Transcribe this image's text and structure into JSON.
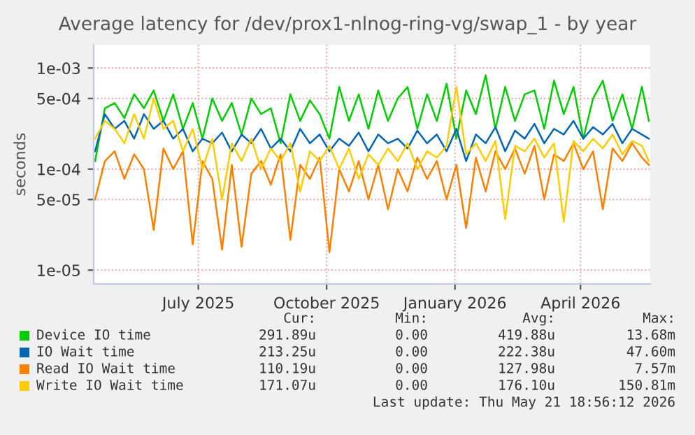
{
  "chart_data": {
    "type": "line",
    "title": "Average latency for /dev/prox1-nlnog-ring-vg/swap_1 - by year",
    "ylabel": "seconds",
    "x": [
      "2025-04-18",
      "2025-04-25",
      "2025-05-02",
      "2025-05-09",
      "2025-05-16",
      "2025-05-23",
      "2025-05-30",
      "2025-06-06",
      "2025-06-13",
      "2025-06-20",
      "2025-06-27",
      "2025-07-04",
      "2025-07-11",
      "2025-07-18",
      "2025-07-25",
      "2025-08-01",
      "2025-08-08",
      "2025-08-15",
      "2025-08-22",
      "2025-08-29",
      "2025-09-05",
      "2025-09-12",
      "2025-09-19",
      "2025-09-26",
      "2025-10-03",
      "2025-10-10",
      "2025-10-17",
      "2025-10-24",
      "2025-10-31",
      "2025-11-07",
      "2025-11-14",
      "2025-11-21",
      "2025-11-28",
      "2025-12-05",
      "2025-12-12",
      "2025-12-19",
      "2025-12-26",
      "2026-01-02",
      "2026-01-09",
      "2026-01-16",
      "2026-01-23",
      "2026-01-30",
      "2026-02-06",
      "2026-02-13",
      "2026-02-20",
      "2026-02-27",
      "2026-03-06",
      "2026-03-13",
      "2026-03-20",
      "2026-03-27",
      "2026-04-03",
      "2026-04-10",
      "2026-04-17",
      "2026-04-24",
      "2026-05-01",
      "2026-05-08",
      "2026-05-15",
      "2026-05-20"
    ],
    "series": [
      {
        "name": "Device IO time",
        "color": "#00cc00",
        "values": [
          0.00012,
          0.0004,
          0.00045,
          0.00032,
          0.00055,
          0.0004,
          0.0006,
          0.0003,
          0.00055,
          0.00025,
          0.00045,
          0.0002,
          0.0005,
          0.0003,
          0.00045,
          0.00022,
          0.0005,
          0.00035,
          0.0004,
          0.00018,
          0.00055,
          0.0003,
          0.00048,
          0.00035,
          0.0002,
          0.00065,
          0.0003,
          0.00055,
          0.00025,
          0.0006,
          0.0003,
          0.0005,
          0.00065,
          0.00025,
          0.00055,
          0.0003,
          0.0007,
          0.0002,
          0.0006,
          0.00035,
          0.00085,
          0.00025,
          0.00065,
          0.0003,
          0.00055,
          0.0006,
          0.00025,
          0.00075,
          0.00035,
          0.00065,
          0.0002,
          0.0005,
          0.00075,
          0.0003,
          0.00055,
          0.00025,
          0.00065,
          0.0003
        ]
      },
      {
        "name": "IO Wait time",
        "color": "#0066b3",
        "values": [
          0.00015,
          0.00035,
          0.00025,
          0.0003,
          0.0002,
          0.00035,
          0.00025,
          0.0003,
          0.0002,
          0.00025,
          0.00015,
          0.0002,
          0.00018,
          0.00023,
          0.00015,
          0.00022,
          0.00018,
          0.00025,
          0.00016,
          0.0002,
          0.00015,
          0.00025,
          0.00018,
          0.00022,
          0.00015,
          0.0002,
          0.00017,
          0.00023,
          0.00015,
          0.00022,
          0.00018,
          0.0002,
          0.00016,
          0.00024,
          0.00018,
          0.00022,
          0.00015,
          0.00025,
          0.00012,
          0.00022,
          0.00018,
          0.00026,
          0.00015,
          0.00024,
          0.0002,
          0.00028,
          0.00018,
          0.00025,
          0.00022,
          0.0003,
          0.0002,
          0.00026,
          0.00022,
          0.00028,
          0.00018,
          0.00025,
          0.00022,
          0.0002
        ]
      },
      {
        "name": "Read IO Wait time",
        "color": "#ff8000",
        "values": [
          5e-05,
          0.00012,
          0.00015,
          8e-05,
          0.00014,
          0.0001,
          2.5e-05,
          0.00016,
          0.0001,
          0.00015,
          1.8e-05,
          0.00012,
          8e-05,
          1.6e-05,
          0.00011,
          1.7e-05,
          9e-05,
          0.00012,
          7e-05,
          0.00014,
          2e-05,
          0.00011,
          8e-05,
          0.00013,
          1.5e-05,
          0.0001,
          6e-05,
          0.00012,
          5e-05,
          0.00011,
          4e-05,
          0.0001,
          6e-05,
          0.00013,
          8e-05,
          0.00012,
          5e-05,
          0.00011,
          2.6e-05,
          0.00013,
          6e-05,
          0.00015,
          0.0001,
          0.00016,
          9e-05,
          0.00017,
          5e-05,
          0.00014,
          0.00012,
          0.00018,
          0.0001,
          0.00015,
          4e-05,
          0.00016,
          0.00012,
          0.00018,
          0.00013,
          0.00011
        ]
      },
      {
        "name": "Write IO Wait time",
        "color": "#ffcc00",
        "values": [
          0.0002,
          0.0003,
          0.00025,
          0.00018,
          0.00035,
          0.0002,
          0.0005,
          0.00025,
          0.0003,
          0.00015,
          0.00025,
          0.0001,
          0.0002,
          5e-05,
          0.00018,
          0.00012,
          0.0002,
          0.0001,
          0.00016,
          0.00012,
          0.00018,
          6e-05,
          0.00015,
          0.00012,
          0.00017,
          0.0001,
          0.00016,
          8e-05,
          0.00014,
          0.00011,
          0.00016,
          0.00012,
          0.00018,
          0.0001,
          0.00015,
          0.00013,
          0.00017,
          0.00065,
          0.00014,
          0.00018,
          0.00012,
          0.00019,
          3.2e-05,
          0.00017,
          0.00015,
          0.0002,
          0.00013,
          0.00018,
          3e-05,
          0.00019,
          0.00015,
          0.0002,
          0.00016,
          0.00022,
          0.00014,
          0.00019,
          0.00017,
          0.00012
        ]
      }
    ],
    "xlim": [
      "2025-04-17",
      "2026-05-21"
    ],
    "xticks": [
      {
        "value": "2025-07-01",
        "label": "July 2025"
      },
      {
        "value": "2025-10-01",
        "label": "October 2025"
      },
      {
        "value": "2026-01-01",
        "label": "January 2026"
      },
      {
        "value": "2026-04-01",
        "label": "April 2026"
      }
    ],
    "log": true,
    "ylim": [
      7.3e-06,
      0.0017
    ],
    "yticks": [
      {
        "value": 1e-05,
        "label": "1e-05"
      },
      {
        "value": 5e-05,
        "label": "5e-05"
      },
      {
        "value": 0.0001,
        "label": "1e-04"
      },
      {
        "value": 0.0005,
        "label": "5e-04"
      },
      {
        "value": 0.001,
        "label": "1e-03"
      }
    ],
    "grid": true,
    "legend": "bottom",
    "line_style": "solid",
    "annotations": [
      "Cur:",
      "Min:",
      "Avg:",
      "Max:",
      "291.89u",
      "0.00",
      "419.88u",
      "13.68m",
      "213.25u",
      "0.00",
      "222.38u",
      "47.60m",
      "110.19u",
      "0.00",
      "127.98u",
      "7.57m",
      "171.07u",
      "0.00",
      "176.10u",
      "150.81m",
      "Last update: Thu May 21 18:56:12 2026"
    ]
  }
}
